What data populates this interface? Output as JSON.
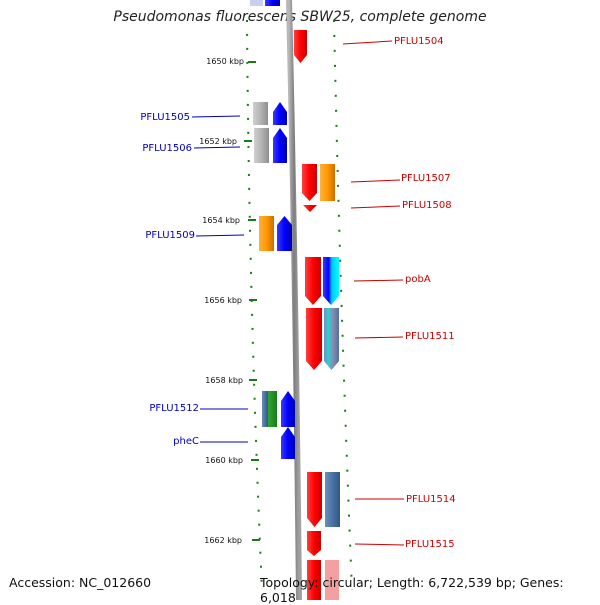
{
  "title": "Pseudomonas fluorescens SBW25, complete genome",
  "footer": {
    "accession": "Accession: NC_012660",
    "topology": "Topology: circular; Length: 6,722,539 bp; Genes: 6,018"
  },
  "colors": {
    "forward_label": "#cc0000",
    "reverse_label": "#0000bb",
    "tick": "#1a7a1a",
    "backbone": "#888888"
  },
  "scale_ticks": [
    {
      "label": "1650 kbp"
    },
    {
      "label": "1652 kbp"
    },
    {
      "label": "1654 kbp"
    },
    {
      "label": "1656 kbp"
    },
    {
      "label": "1658 kbp"
    },
    {
      "label": "1660 kbp"
    },
    {
      "label": "1662 kbp"
    }
  ],
  "gene_labels": {
    "forward": [
      "PFLU1504",
      "PFLU1507",
      "PFLU1508",
      "pobA",
      "PFLU1511",
      "PFLU1514",
      "PFLU1515"
    ],
    "reverse": [
      "PFLU1505",
      "PFLU1506",
      "PFLU1509",
      "PFLU1512",
      "pheC"
    ]
  }
}
